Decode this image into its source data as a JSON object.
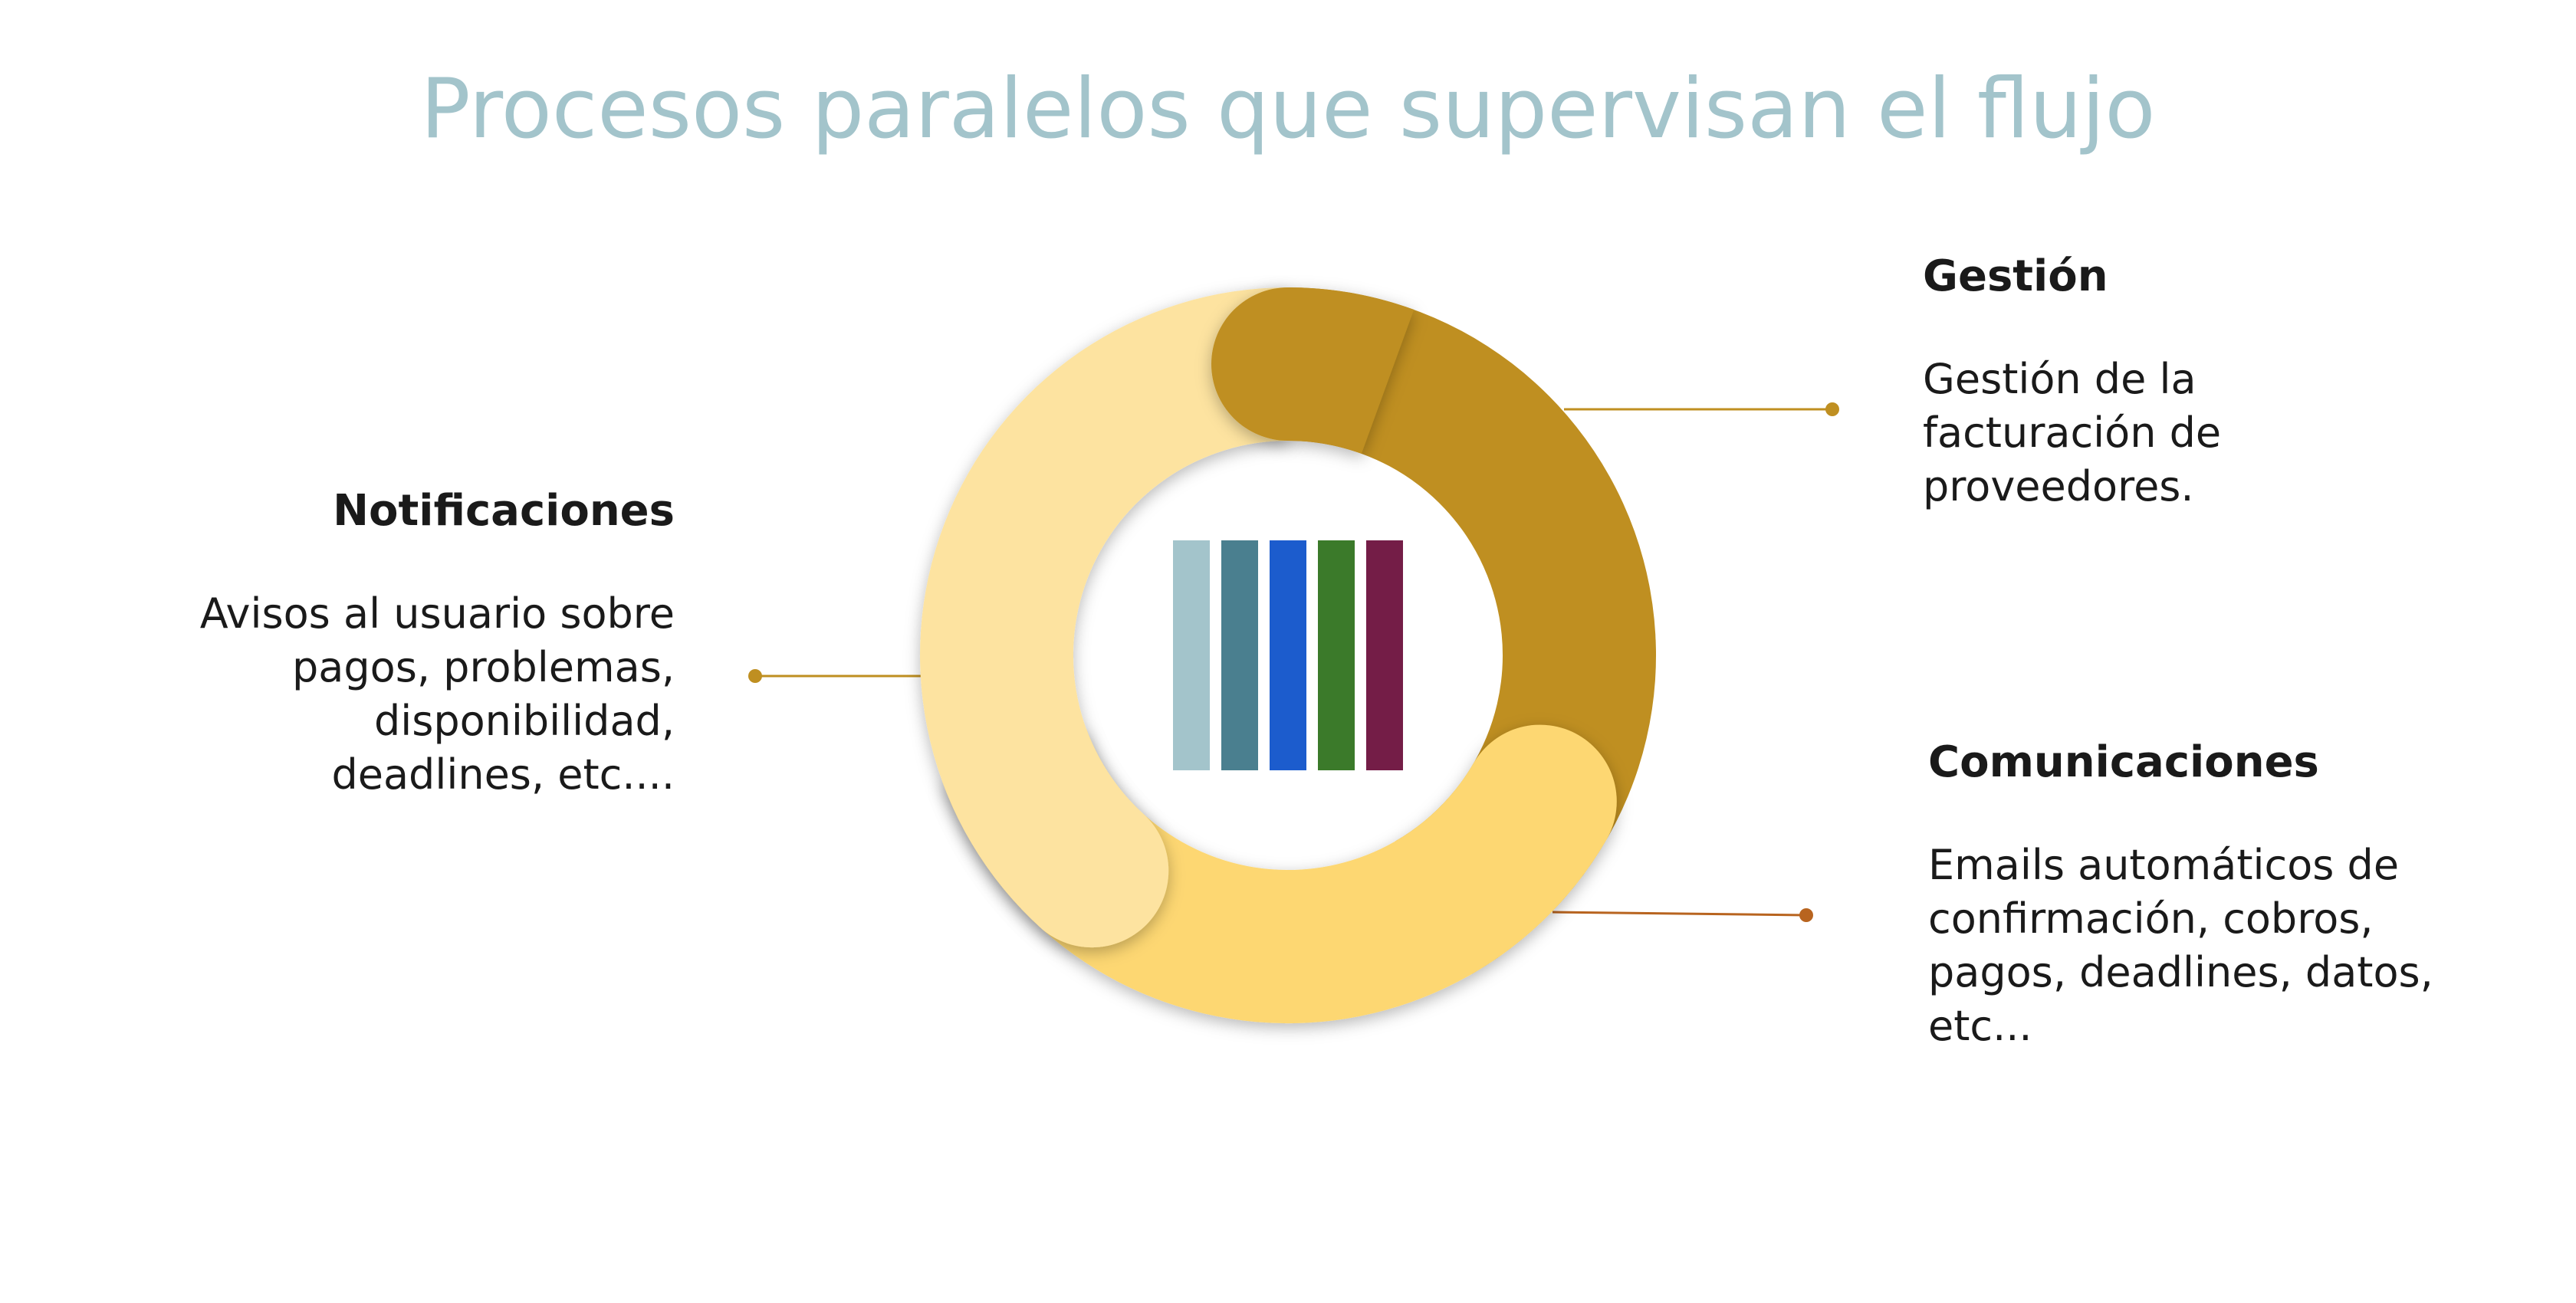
{
  "title": "Procesos paralelos que supervisan el flujo",
  "colors": {
    "title": "#a3c4cb",
    "segment_top_right": "#bf8f21",
    "segment_bottom": "#fdd772",
    "segment_left": "#fde3a0",
    "connector_gold": "#bf8f21",
    "connector_rust": "#b8641f"
  },
  "center_bars": [
    {
      "color": "#a3c4cb"
    },
    {
      "color": "#4a7f8f"
    },
    {
      "color": "#1c5ccd"
    },
    {
      "color": "#3b7a2a"
    },
    {
      "color": "#741d47"
    }
  ],
  "sections": {
    "notificaciones": {
      "heading": "Notificaciones",
      "lines": [
        "Avisos al usuario sobre",
        "pagos, problemas,",
        "disponibilidad,",
        "deadlines, etc...."
      ]
    },
    "gestion": {
      "heading": "Gestión",
      "lines": [
        "Gestión de la",
        "facturación de",
        "proveedores."
      ]
    },
    "comunicaciones": {
      "heading": "Comunicaciones",
      "lines": [
        "Emails automáticos de",
        "confirmación, cobros,",
        "pagos, deadlines, datos,",
        "etc..."
      ]
    }
  }
}
